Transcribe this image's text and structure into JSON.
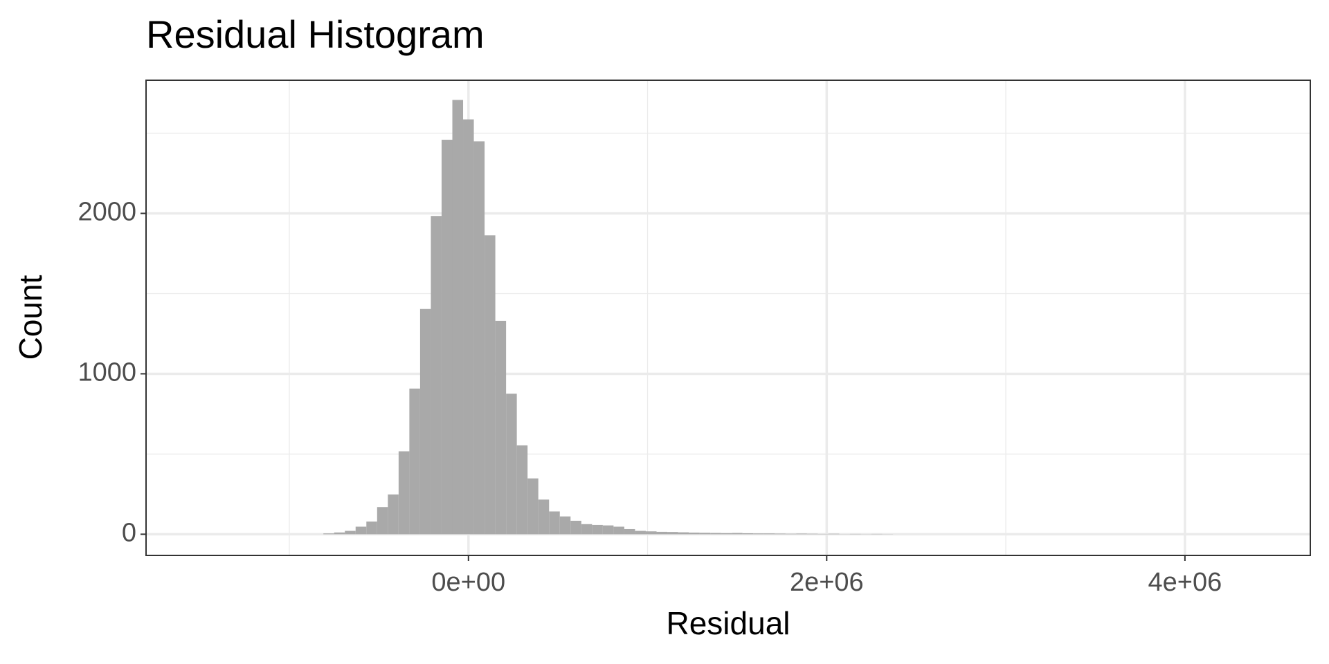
{
  "chart_data": {
    "type": "histogram",
    "title": "Residual Histogram",
    "x_label": "Residual",
    "y_label": "Count",
    "bins": [
      -810000,
      -750000,
      -690000,
      -630000,
      -570000,
      -510000,
      -450000,
      -390000,
      -330000,
      -270000,
      -210000,
      -150000,
      -90000,
      -30000,
      30000,
      90000,
      150000,
      210000,
      270000,
      330000,
      390000,
      450000,
      510000,
      570000,
      630000,
      690000,
      750000,
      810000,
      870000,
      930000,
      990000,
      1050000,
      1110000,
      1170000,
      1230000,
      1290000,
      1350000,
      1410000,
      1470000,
      1530000,
      1590000,
      1650000,
      1710000,
      1770000,
      1830000,
      1890000,
      1950000,
      2010000,
      2070000,
      2130000,
      2190000,
      2250000,
      2310000,
      2370000
    ],
    "values": [
      5,
      11,
      21,
      47,
      79,
      169,
      248,
      517,
      908,
      1404,
      1984,
      2459,
      2707,
      2586,
      2449,
      1863,
      1330,
      876,
      554,
      348,
      216,
      142,
      111,
      84,
      63,
      58,
      55,
      47,
      32,
      21,
      18,
      15,
      14,
      12,
      10,
      9,
      8,
      7,
      8,
      6,
      5,
      5,
      4,
      3,
      4,
      3,
      2,
      3,
      1,
      2,
      1,
      2,
      1
    ],
    "color": "#a9a9a9",
    "xlim": [
      -1800000,
      4700000
    ],
    "ylim": [
      -132,
      2830
    ],
    "xticks": [
      {
        "value": 0,
        "label": "0e+00"
      },
      {
        "value": 2000000,
        "label": "2e+06"
      },
      {
        "value": 4000000,
        "label": "4e+06"
      }
    ],
    "x_minor_ticks": [
      -1000000,
      1000000,
      3000000
    ],
    "yticks": [
      0,
      1000,
      2000
    ],
    "y_minor_ticks": [
      500,
      1500,
      2500
    ],
    "grid": true
  }
}
